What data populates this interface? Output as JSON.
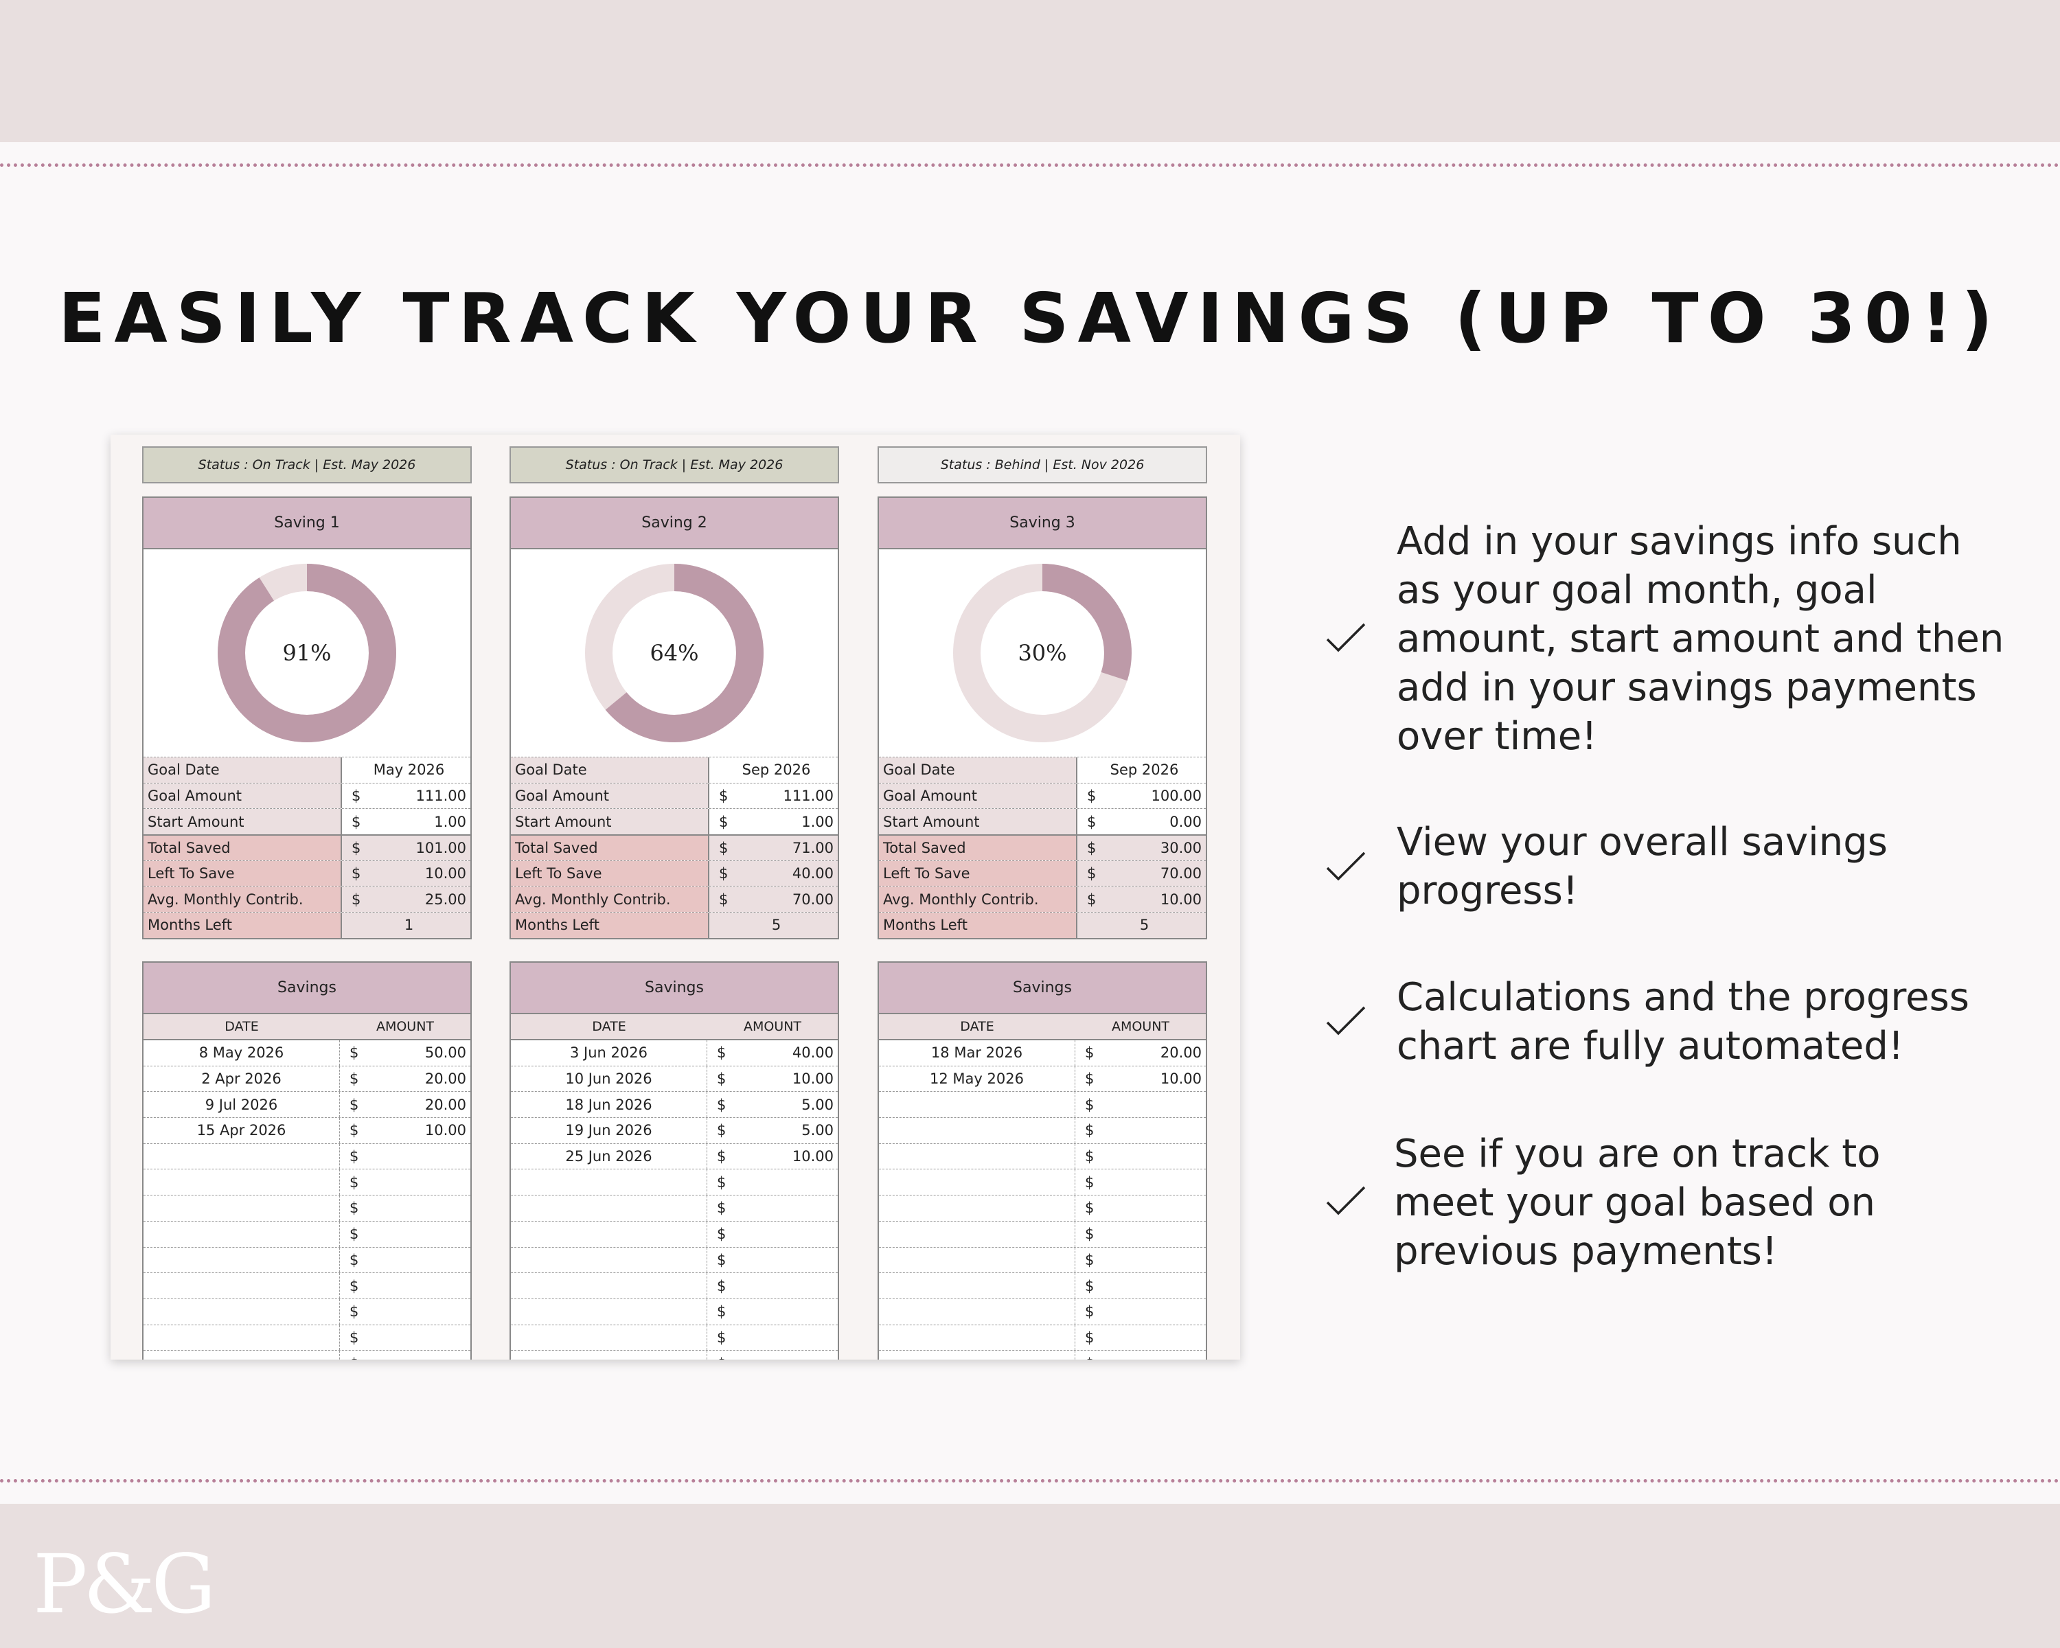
{
  "title": "EASILY TRACK YOUR SAVINGS (UP TO 30!)",
  "logo": "P&G",
  "colors": {
    "band": "#e8dfdf",
    "accent": "#b77f98",
    "header": "#d3b8c5",
    "donut_fill": "#bd9aa8",
    "donut_track": "#ebdfe0",
    "status_on_track": "#d5d5c7",
    "status_behind": "#efedec",
    "label_light": "#ebdfe0",
    "label_dark": "#e8c5c4"
  },
  "labels": {
    "goal_date": "Goal Date",
    "goal_amount": "Goal Amount",
    "start_amount": "Start Amount",
    "total_saved": "Total Saved",
    "left_to_save": "Left To Save",
    "avg_monthly": "Avg. Monthly Contrib.",
    "months_left": "Months Left",
    "ledger_title": "Savings",
    "date_col": "DATE",
    "amount_col": "AMOUNT",
    "currency": "$"
  },
  "savings": [
    {
      "status": "Status : On Track  |  Est. May 2026",
      "status_kind": "on_track",
      "name": "Saving 1",
      "percent": 91,
      "percent_label": "91%",
      "goal_date": "May 2026",
      "goal_amount": "111.00",
      "start_amount": "1.00",
      "total_saved": "101.00",
      "left_to_save": "10.00",
      "avg_monthly": "25.00",
      "months_left": "1",
      "entries": [
        {
          "date": "8 May 2026",
          "amount": "50.00"
        },
        {
          "date": "2 Apr 2026",
          "amount": "20.00"
        },
        {
          "date": "9 Jul 2026",
          "amount": "20.00"
        },
        {
          "date": "15 Apr 2026",
          "amount": "10.00"
        }
      ]
    },
    {
      "status": "Status : On Track  |  Est. May 2026",
      "status_kind": "on_track",
      "name": "Saving 2",
      "percent": 64,
      "percent_label": "64%",
      "goal_date": "Sep 2026",
      "goal_amount": "111.00",
      "start_amount": "1.00",
      "total_saved": "71.00",
      "left_to_save": "40.00",
      "avg_monthly": "70.00",
      "months_left": "5",
      "entries": [
        {
          "date": "3 Jun 2026",
          "amount": "40.00"
        },
        {
          "date": "10 Jun 2026",
          "amount": "10.00"
        },
        {
          "date": "18 Jun 2026",
          "amount": "5.00"
        },
        {
          "date": "19 Jun 2026",
          "amount": "5.00"
        },
        {
          "date": "25 Jun 2026",
          "amount": "10.00"
        }
      ]
    },
    {
      "status": "Status : Behind  |  Est. Nov 2026",
      "status_kind": "behind",
      "name": "Saving 3",
      "percent": 30,
      "percent_label": "30%",
      "goal_date": "Sep 2026",
      "goal_amount": "100.00",
      "start_amount": "0.00",
      "total_saved": "30.00",
      "left_to_save": "70.00",
      "avg_monthly": "10.00",
      "months_left": "5",
      "entries": [
        {
          "date": "18 Mar 2026",
          "amount": "20.00"
        },
        {
          "date": "12 May 2026",
          "amount": "10.00"
        }
      ]
    }
  ],
  "bullets": [
    {
      "text": "Add in your savings info such as your goal month, goal amount, start amount and then add in your savings payments over time!",
      "icon": "check-icon"
    },
    {
      "text": "View your overall savings progress!",
      "icon": "check-icon"
    },
    {
      "text": "Calculations and the progress chart are fully automated!",
      "icon": "check-icon"
    },
    {
      "text": "See if you are on track to meet your goal based on previous payments!",
      "icon": "check-icon"
    }
  ]
}
